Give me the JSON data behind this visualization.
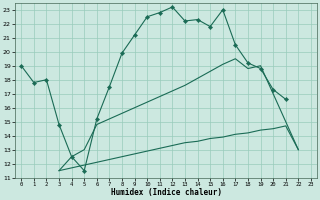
{
  "background_color": "#cce8e0",
  "grid_color": "#99ccbb",
  "line_color": "#1a6b55",
  "xlabel": "Humidex (Indice chaleur)",
  "ylim": [
    11,
    23.5
  ],
  "xlim": [
    -0.5,
    23.5
  ],
  "yticks": [
    11,
    12,
    13,
    14,
    15,
    16,
    17,
    18,
    19,
    20,
    21,
    22,
    23
  ],
  "xticks": [
    0,
    1,
    2,
    3,
    4,
    5,
    6,
    7,
    8,
    9,
    10,
    11,
    12,
    13,
    14,
    15,
    16,
    17,
    18,
    19,
    20,
    21,
    22,
    23
  ],
  "line1_x": [
    0,
    1,
    2,
    3,
    4,
    5,
    6,
    7,
    8,
    9,
    10,
    11,
    12,
    13,
    14,
    15,
    16,
    17,
    18,
    19,
    20,
    21
  ],
  "line1_y": [
    19.0,
    17.8,
    18.0,
    14.8,
    12.5,
    11.5,
    15.2,
    17.5,
    19.9,
    21.2,
    22.5,
    22.8,
    23.2,
    22.2,
    22.3,
    21.8,
    23.0,
    20.5,
    19.2,
    18.8,
    17.3,
    16.6
  ],
  "line2_x": [
    3,
    4,
    5,
    6,
    7,
    8,
    9,
    10,
    11,
    12,
    13,
    14,
    15,
    16,
    17,
    18,
    19,
    20,
    21,
    22
  ],
  "line2_y": [
    11.5,
    11.7,
    11.9,
    12.1,
    12.3,
    12.5,
    12.7,
    12.9,
    13.1,
    13.3,
    13.5,
    13.6,
    13.8,
    13.9,
    14.1,
    14.2,
    14.4,
    14.5,
    14.7,
    13.0
  ],
  "line3_x": [
    3,
    4,
    5,
    6,
    7,
    8,
    9,
    10,
    11,
    12,
    13,
    14,
    15,
    16,
    17,
    18,
    19,
    22
  ],
  "line3_y": [
    11.5,
    12.5,
    13.0,
    14.8,
    15.2,
    15.6,
    16.0,
    16.4,
    16.8,
    17.2,
    17.6,
    18.1,
    18.6,
    19.1,
    19.5,
    18.8,
    19.0,
    13.0
  ]
}
